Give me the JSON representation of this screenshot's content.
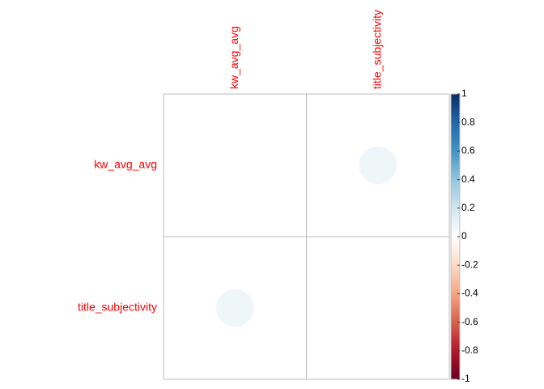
{
  "chart_data": {
    "type": "corrplot",
    "variables": [
      "kw_avg_avg",
      "title_subjectivity"
    ],
    "matrix": [
      [
        null,
        0.07
      ],
      [
        0.07,
        null
      ]
    ],
    "colorscale": [
      "#67001F",
      "#B2182B",
      "#D6604D",
      "#F4A582",
      "#FDDBC7",
      "#FFFFFF",
      "#D1E5F0",
      "#92C5DE",
      "#4393C3",
      "#2166AC",
      "#053061"
    ],
    "label_color": "#ff0000",
    "grid": true,
    "clim": [
      -1,
      1
    ],
    "cticks": [
      -1,
      -0.8,
      -0.6,
      -0.4,
      -0.2,
      0,
      0.2,
      0.4,
      0.6,
      0.8,
      1
    ]
  }
}
